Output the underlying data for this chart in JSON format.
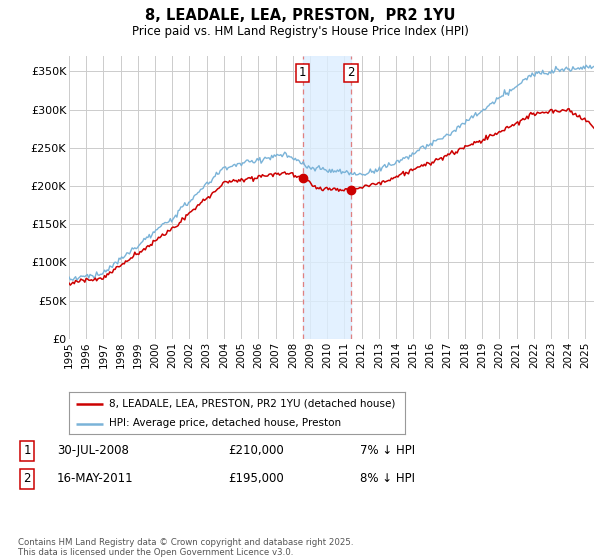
{
  "title": "8, LEADALE, LEA, PRESTON,  PR2 1YU",
  "subtitle": "Price paid vs. HM Land Registry's House Price Index (HPI)",
  "ylabel_ticks": [
    "£0",
    "£50K",
    "£100K",
    "£150K",
    "£200K",
    "£250K",
    "£300K",
    "£350K"
  ],
  "ytick_values": [
    0,
    50000,
    100000,
    150000,
    200000,
    250000,
    300000,
    350000
  ],
  "ylim": [
    0,
    370000
  ],
  "xlim_year_start": 1995,
  "xlim_year_end": 2025.5,
  "hpi_color": "#7ab3d8",
  "price_color": "#cc0000",
  "marker1_date_x": 2008.58,
  "marker2_date_x": 2011.38,
  "marker1_price": 210000,
  "marker2_price": 195000,
  "shade_color": "#ddeeff",
  "legend_line1": "8, LEADALE, LEA, PRESTON, PR2 1YU (detached house)",
  "legend_line2": "HPI: Average price, detached house, Preston",
  "table_row1_label": "1",
  "table_row1_date": "30-JUL-2008",
  "table_row1_price": "£210,000",
  "table_row1_hpi": "7% ↓ HPI",
  "table_row2_label": "2",
  "table_row2_date": "16-MAY-2011",
  "table_row2_price": "£195,000",
  "table_row2_hpi": "8% ↓ HPI",
  "copyright_text": "Contains HM Land Registry data © Crown copyright and database right 2025.\nThis data is licensed under the Open Government Licence v3.0.",
  "background_color": "#ffffff",
  "grid_color": "#cccccc"
}
